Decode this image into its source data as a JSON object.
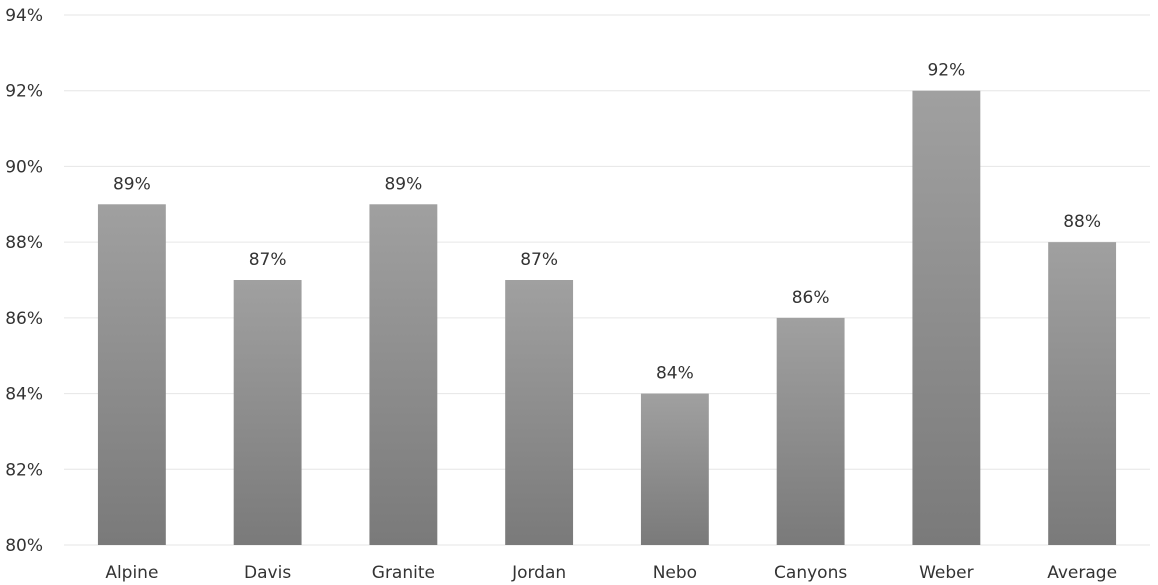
{
  "chart_data": {
    "type": "bar",
    "title": "",
    "xlabel": "",
    "ylabel": "",
    "categories": [
      "Alpine",
      "Davis",
      "Granite",
      "Jordan",
      "Nebo",
      "Canyons",
      "Weber",
      "Average"
    ],
    "values": [
      89,
      87,
      89,
      87,
      84,
      86,
      92,
      88
    ],
    "data_labels": [
      "89%",
      "87%",
      "89%",
      "87%",
      "84%",
      "86%",
      "92%",
      "88%"
    ],
    "ylim": [
      80,
      94
    ],
    "y_ticks": [
      80,
      82,
      84,
      86,
      88,
      90,
      92,
      94
    ],
    "y_tick_labels": [
      "80%",
      "82%",
      "84%",
      "86%",
      "88%",
      "90%",
      "92%",
      "94%"
    ],
    "grid": true,
    "legend": "none",
    "bar_color_top": "#a0a0a0",
    "bar_color_bottom": "#7a7a7a"
  }
}
